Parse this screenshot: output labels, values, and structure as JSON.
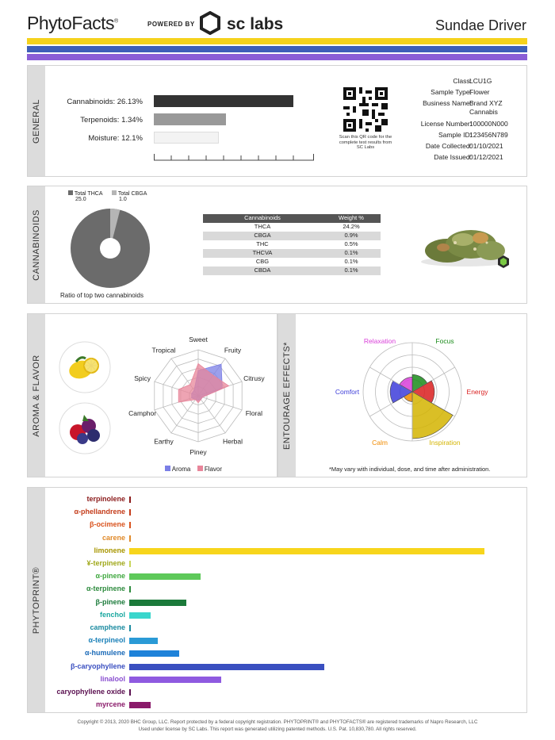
{
  "header": {
    "logo": "PhytoFacts",
    "powered_by": "POWERED BY",
    "sc_labs": "sc labs",
    "strain_name": "Sundae Driver"
  },
  "bands": [
    "#f5d21c",
    "#3e5fb8",
    "#8a5ed6"
  ],
  "general": {
    "label": "GENERAL",
    "metrics": [
      {
        "label": "Cannabinoids:",
        "value": "26.13%",
        "fill": 0.87,
        "color": "#333333"
      },
      {
        "label": "Terpenoids:",
        "value": "1.34%",
        "fill": 0.45,
        "color": "#999999"
      },
      {
        "label": "Moisture:",
        "value": "12.1%",
        "fill": 0.4,
        "color": "#f4f4f4"
      }
    ],
    "qr_caption": "Scan this QR code for the complete test results from SC Labs",
    "info": [
      {
        "key": "Class:",
        "value": "LCU1G"
      },
      {
        "key": "Sample Type:",
        "value": "Flower"
      },
      {
        "key": "Business Name:",
        "value": "Brand XYZ Cannabis"
      },
      {
        "key": "License Number:",
        "value": "100000N000"
      },
      {
        "key": "Sample ID:",
        "value": "123456N789"
      },
      {
        "key": "Date Collected:",
        "value": "01/10/2021"
      },
      {
        "key": "Date Issued:",
        "value": "01/12/2021"
      }
    ]
  },
  "cannabinoids": {
    "label": "CANNABINOIDS",
    "legend": [
      {
        "name": "Total THCA",
        "value": "25.0",
        "color": "#6b6b6b"
      },
      {
        "name": "Total CBGA",
        "value": "1.0",
        "color": "#b5b5b5"
      }
    ],
    "pie_caption": "Ratio of top two cannabinoids",
    "table_header": [
      "Cannabinoids",
      "Weight %"
    ],
    "table": [
      [
        "THCA",
        "24.2%"
      ],
      [
        "CBGA",
        "0.9%"
      ],
      [
        "THC",
        "0.5%"
      ],
      [
        "THCVA",
        "0.1%"
      ],
      [
        "CBG",
        "0.1%"
      ],
      [
        "CBDA",
        "0.1%"
      ]
    ]
  },
  "aroma": {
    "label": "AROMA & FLAVOR",
    "axes": [
      "Sweet",
      "Fruity",
      "Citrusy",
      "Floral",
      "Herbal",
      "Piney",
      "Earthy",
      "Camphor",
      "Spicy",
      "Tropical"
    ],
    "legend": [
      {
        "name": "Aroma",
        "color": "#7b7fe6"
      },
      {
        "name": "Flavor",
        "color": "#e8859a"
      }
    ],
    "aroma_values": [
      0.55,
      0.85,
      0.55,
      0.1,
      0.1,
      0.1,
      0.1,
      0.15,
      0.15,
      0.15
    ],
    "flavor_values": [
      0.7,
      0.55,
      0.7,
      0.1,
      0.1,
      0.15,
      0.1,
      0.45,
      0.45,
      0.3
    ]
  },
  "entourage": {
    "label": "ENTOURAGE EFFECTS*",
    "effects": [
      {
        "name": "Focus",
        "color": "#1a8c1a",
        "value": 0.35
      },
      {
        "name": "Energy",
        "color": "#d91f1f",
        "value": 0.45
      },
      {
        "name": "Inspiration",
        "color": "#d4b400",
        "value": 0.95
      },
      {
        "name": "Calm",
        "color": "#f08a00",
        "value": 0.2
      },
      {
        "name": "Comfort",
        "color": "#3d3dd9",
        "value": 0.45
      },
      {
        "name": "Relaxation",
        "color": "#d93ed9",
        "value": 0.3
      }
    ],
    "note": "*May vary with individual, dose, and time after administration."
  },
  "phytoprint": {
    "label": "PHYTOPRINT®",
    "terpenes": [
      {
        "name": "terpinolene",
        "color": "#8b1a1a",
        "value": 0.005
      },
      {
        "name": "α-phellandrene",
        "color": "#c43c1a",
        "value": 0.005
      },
      {
        "name": "β-ocimene",
        "color": "#d9531e",
        "value": 0.005
      },
      {
        "name": "carene",
        "color": "#e08a2a",
        "value": 0.005
      },
      {
        "name": "limonene",
        "color": "#a89600",
        "value": 1.0,
        "bar": "#f7d51c"
      },
      {
        "name": "¥-terpinene",
        "color": "#a0a81a",
        "value": 0.005,
        "bar": "#c9d65a"
      },
      {
        "name": "α-pinene",
        "color": "#3fa83f",
        "value": 0.2,
        "bar": "#5ec95a"
      },
      {
        "name": "α-terpinene",
        "color": "#2e8b3e",
        "value": 0.005
      },
      {
        "name": "β-pinene",
        "color": "#1b7a3a",
        "value": 0.16
      },
      {
        "name": "fenchol",
        "color": "#1aa8a0",
        "value": 0.06,
        "bar": "#3ad6cc"
      },
      {
        "name": "camphene",
        "color": "#1a8aa0",
        "value": 0.005
      },
      {
        "name": "α-terpineol",
        "color": "#1a80b8",
        "value": 0.08,
        "bar": "#2a9ad6"
      },
      {
        "name": "α-humulene",
        "color": "#1a6ab8",
        "value": 0.14,
        "bar": "#1e82d9"
      },
      {
        "name": "β-caryophyllene",
        "color": "#3a4fc0",
        "value": 0.55
      },
      {
        "name": "linalool",
        "color": "#8a4fd0",
        "value": 0.26,
        "bar": "#8f5ae0"
      },
      {
        "name": "caryophyllene oxide",
        "color": "#5a1050",
        "value": 0.005
      },
      {
        "name": "myrcene",
        "color": "#8a1a6a",
        "value": 0.06
      }
    ]
  },
  "footer": {
    "line1": "Copyright © 2013, 2020 BHC Group, LLC. Report protected by a federal copyright registration. PHYTOPRINT® and PHYTOFACTS® are registered trademarks of Napro Research, LLC",
    "line2": "Used under license by SC Labs. This report was generated utilizing patented methods. U.S. Pat. 10,830,780. All rights reserved."
  }
}
